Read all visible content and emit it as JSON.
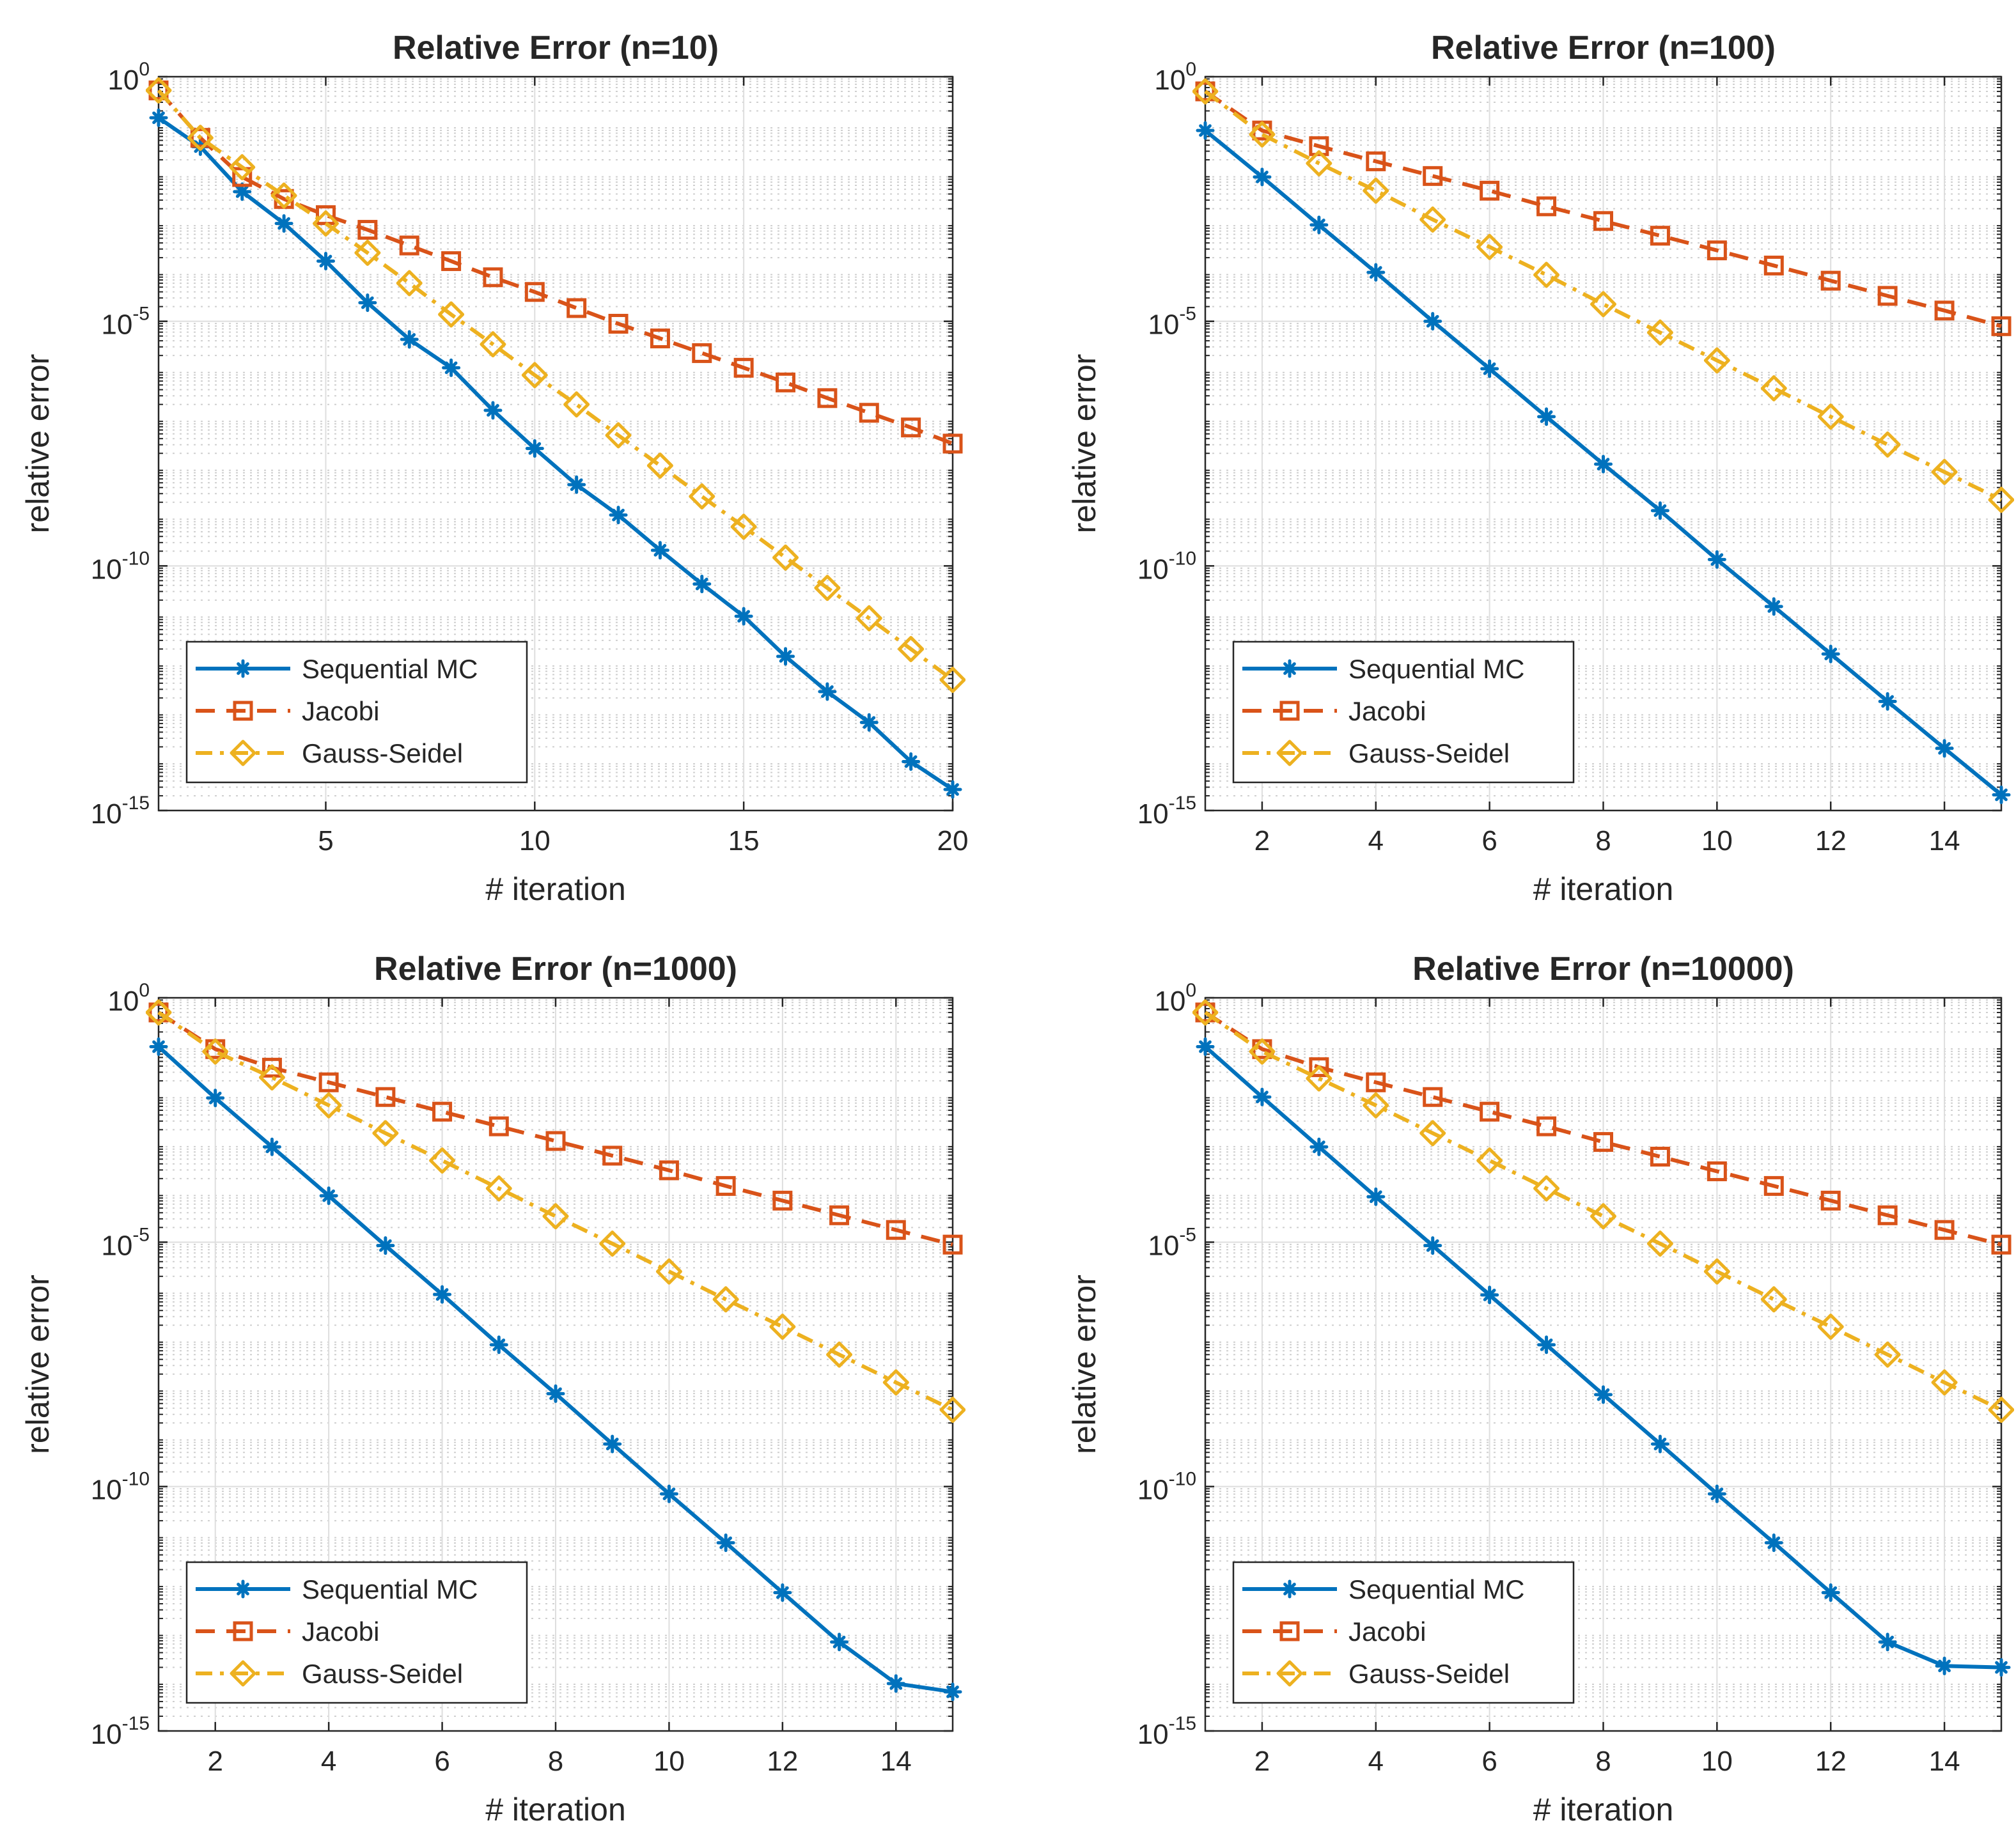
{
  "chart_data": [
    {
      "type": "line",
      "title": "Relative Error (n=10)",
      "xlabel": "# iteration",
      "ylabel": "relative error",
      "yscale": "log",
      "xlim": [
        1,
        20
      ],
      "ylim_exp": [
        -15,
        0
      ],
      "xticks": [
        5,
        10,
        15,
        20
      ],
      "xtick_labels": [
        "5",
        "10",
        "15",
        "20"
      ],
      "yticks_exp": [
        0,
        -5,
        -10,
        -15
      ],
      "ytick_base": "10",
      "ytick_exps": [
        "0",
        "-5",
        "-10",
        "-15"
      ],
      "grid": true,
      "legend_position": "bottom-left",
      "series": [
        {
          "name": "Sequential MC",
          "color": "#0072BD",
          "marker": "asterisk",
          "linestyle": "solid",
          "x": [
            1,
            2,
            3,
            4,
            5,
            6,
            7,
            8,
            9,
            10,
            11,
            12,
            13,
            14,
            15,
            16,
            17,
            18,
            19,
            20
          ],
          "log10_y": [
            -0.84,
            -1.43,
            -2.35,
            -3.0,
            -3.77,
            -4.62,
            -5.37,
            -5.95,
            -6.82,
            -7.6,
            -8.34,
            -8.96,
            -9.68,
            -10.37,
            -11.03,
            -11.85,
            -12.57,
            -13.2,
            -14.0,
            -14.57
          ]
        },
        {
          "name": "Jacobi",
          "color": "#D95319",
          "marker": "square",
          "linestyle": "dashed",
          "x": [
            1,
            2,
            3,
            4,
            5,
            6,
            7,
            8,
            9,
            10,
            11,
            12,
            13,
            14,
            15,
            16,
            17,
            18,
            19,
            20
          ],
          "log10_y": [
            -0.28,
            -1.25,
            -2.05,
            -2.5,
            -2.83,
            -3.13,
            -3.45,
            -3.77,
            -4.1,
            -4.4,
            -4.73,
            -5.05,
            -5.35,
            -5.65,
            -5.95,
            -6.25,
            -6.57,
            -6.87,
            -7.17,
            -7.5
          ]
        },
        {
          "name": "Gauss-Seidel",
          "color": "#EDB120",
          "marker": "diamond",
          "linestyle": "dashdot",
          "x": [
            1,
            2,
            3,
            4,
            5,
            6,
            7,
            8,
            9,
            10,
            11,
            12,
            13,
            14,
            15,
            16,
            17,
            18,
            19,
            20
          ],
          "log10_y": [
            -0.28,
            -1.25,
            -1.85,
            -2.43,
            -3.0,
            -3.6,
            -4.22,
            -4.86,
            -5.47,
            -6.1,
            -6.7,
            -7.33,
            -7.95,
            -8.58,
            -9.2,
            -9.83,
            -10.45,
            -11.07,
            -11.7,
            -12.33
          ]
        }
      ]
    },
    {
      "type": "line",
      "title": "Relative Error (n=100)",
      "xlabel": "# iteration",
      "ylabel": "relative error",
      "yscale": "log",
      "xlim": [
        1,
        15
      ],
      "ylim_exp": [
        -15,
        0
      ],
      "xticks": [
        2,
        4,
        6,
        8,
        10,
        12,
        14
      ],
      "xtick_labels": [
        "2",
        "4",
        "6",
        "8",
        "10",
        "12",
        "14"
      ],
      "yticks_exp": [
        0,
        -5,
        -10,
        -15
      ],
      "ytick_base": "10",
      "ytick_exps": [
        "0",
        "-5",
        "-10",
        "-15"
      ],
      "grid": true,
      "legend_position": "bottom-left",
      "series": [
        {
          "name": "Sequential MC",
          "color": "#0072BD",
          "marker": "asterisk",
          "linestyle": "solid",
          "x": [
            1,
            2,
            3,
            4,
            5,
            6,
            7,
            8,
            9,
            10,
            11,
            12,
            13,
            14,
            15
          ],
          "log10_y": [
            -1.1,
            -2.05,
            -3.03,
            -4.0,
            -5.0,
            -5.97,
            -6.95,
            -7.92,
            -8.87,
            -9.87,
            -10.83,
            -11.8,
            -12.77,
            -13.73,
            -14.68
          ]
        },
        {
          "name": "Jacobi",
          "color": "#D95319",
          "marker": "square",
          "linestyle": "dashed",
          "x": [
            1,
            2,
            3,
            4,
            5,
            6,
            7,
            8,
            9,
            10,
            11,
            12,
            13,
            14,
            15
          ],
          "log10_y": [
            -0.3,
            -1.1,
            -1.42,
            -1.73,
            -2.03,
            -2.33,
            -2.65,
            -2.95,
            -3.25,
            -3.55,
            -3.86,
            -4.17,
            -4.48,
            -4.78,
            -5.1
          ]
        },
        {
          "name": "Gauss-Seidel",
          "color": "#EDB120",
          "marker": "diamond",
          "linestyle": "dashdot",
          "x": [
            1,
            2,
            3,
            4,
            5,
            6,
            7,
            8,
            9,
            10,
            11,
            12,
            13,
            14,
            15
          ],
          "log10_y": [
            -0.3,
            -1.18,
            -1.77,
            -2.33,
            -2.92,
            -3.48,
            -4.05,
            -4.65,
            -5.23,
            -5.8,
            -6.37,
            -6.95,
            -7.52,
            -8.08,
            -8.65
          ]
        }
      ]
    },
    {
      "type": "line",
      "title": "Relative Error (n=1000)",
      "xlabel": "# iteration",
      "ylabel": "relative error",
      "yscale": "log",
      "xlim": [
        1,
        15
      ],
      "ylim_exp": [
        -15,
        0
      ],
      "xticks": [
        2,
        4,
        6,
        8,
        10,
        12,
        14
      ],
      "xtick_labels": [
        "2",
        "4",
        "6",
        "8",
        "10",
        "12",
        "14"
      ],
      "yticks_exp": [
        0,
        -5,
        -10,
        -15
      ],
      "ytick_base": "10",
      "ytick_exps": [
        "0",
        "-5",
        "-10",
        "-15"
      ],
      "grid": true,
      "legend_position": "bottom-left",
      "series": [
        {
          "name": "Sequential MC",
          "color": "#0072BD",
          "marker": "asterisk",
          "linestyle": "solid",
          "x": [
            1,
            2,
            3,
            4,
            5,
            6,
            7,
            8,
            9,
            10,
            11,
            12,
            13,
            14,
            15
          ],
          "log10_y": [
            -1.0,
            -2.05,
            -3.05,
            -4.05,
            -5.07,
            -6.07,
            -7.1,
            -8.1,
            -9.13,
            -10.15,
            -11.15,
            -12.17,
            -13.18,
            -14.03,
            -14.2
          ]
        },
        {
          "name": "Jacobi",
          "color": "#D95319",
          "marker": "square",
          "linestyle": "dashed",
          "x": [
            1,
            2,
            3,
            4,
            5,
            6,
            7,
            8,
            9,
            10,
            11,
            12,
            13,
            14,
            15
          ],
          "log10_y": [
            -0.3,
            -1.05,
            -1.43,
            -1.73,
            -2.03,
            -2.33,
            -2.63,
            -2.93,
            -3.23,
            -3.53,
            -3.85,
            -4.15,
            -4.45,
            -4.75,
            -5.05
          ]
        },
        {
          "name": "Gauss-Seidel",
          "color": "#EDB120",
          "marker": "diamond",
          "linestyle": "dashdot",
          "x": [
            1,
            2,
            3,
            4,
            5,
            6,
            7,
            8,
            9,
            10,
            11,
            12,
            13,
            14,
            15
          ],
          "log10_y": [
            -0.3,
            -1.1,
            -1.63,
            -2.2,
            -2.77,
            -3.33,
            -3.9,
            -4.47,
            -5.03,
            -5.6,
            -6.17,
            -6.73,
            -7.3,
            -7.87,
            -8.43
          ]
        }
      ]
    },
    {
      "type": "line",
      "title": "Relative Error (n=10000)",
      "xlabel": "# iteration",
      "ylabel": "relative error",
      "yscale": "log",
      "xlim": [
        1,
        15
      ],
      "ylim_exp": [
        -15,
        0
      ],
      "xticks": [
        2,
        4,
        6,
        8,
        10,
        12,
        14
      ],
      "xtick_labels": [
        "2",
        "4",
        "6",
        "8",
        "10",
        "12",
        "14"
      ],
      "yticks_exp": [
        0,
        -5,
        -10,
        -15
      ],
      "ytick_base": "10",
      "ytick_exps": [
        "0",
        "-5",
        "-10",
        "-15"
      ],
      "grid": true,
      "legend_position": "bottom-left",
      "series": [
        {
          "name": "Sequential MC",
          "color": "#0072BD",
          "marker": "asterisk",
          "linestyle": "solid",
          "x": [
            1,
            2,
            3,
            4,
            5,
            6,
            7,
            8,
            9,
            10,
            11,
            12,
            13,
            14,
            15
          ],
          "log10_y": [
            -1.0,
            -2.03,
            -3.05,
            -4.07,
            -5.07,
            -6.08,
            -7.1,
            -8.12,
            -9.13,
            -10.15,
            -11.15,
            -12.17,
            -13.18,
            -13.67,
            -13.7
          ]
        },
        {
          "name": "Jacobi",
          "color": "#D95319",
          "marker": "square",
          "linestyle": "dashed",
          "x": [
            1,
            2,
            3,
            4,
            5,
            6,
            7,
            8,
            9,
            10,
            11,
            12,
            13,
            14,
            15
          ],
          "log10_y": [
            -0.3,
            -1.05,
            -1.42,
            -1.73,
            -2.03,
            -2.33,
            -2.63,
            -2.95,
            -3.25,
            -3.55,
            -3.85,
            -4.15,
            -4.45,
            -4.75,
            -5.05
          ]
        },
        {
          "name": "Gauss-Seidel",
          "color": "#EDB120",
          "marker": "diamond",
          "linestyle": "dashdot",
          "x": [
            1,
            2,
            3,
            4,
            5,
            6,
            7,
            8,
            9,
            10,
            11,
            12,
            13,
            14,
            15
          ],
          "log10_y": [
            -0.3,
            -1.1,
            -1.65,
            -2.2,
            -2.77,
            -3.33,
            -3.9,
            -4.47,
            -5.03,
            -5.6,
            -6.17,
            -6.73,
            -7.3,
            -7.87,
            -8.43
          ]
        }
      ]
    }
  ]
}
